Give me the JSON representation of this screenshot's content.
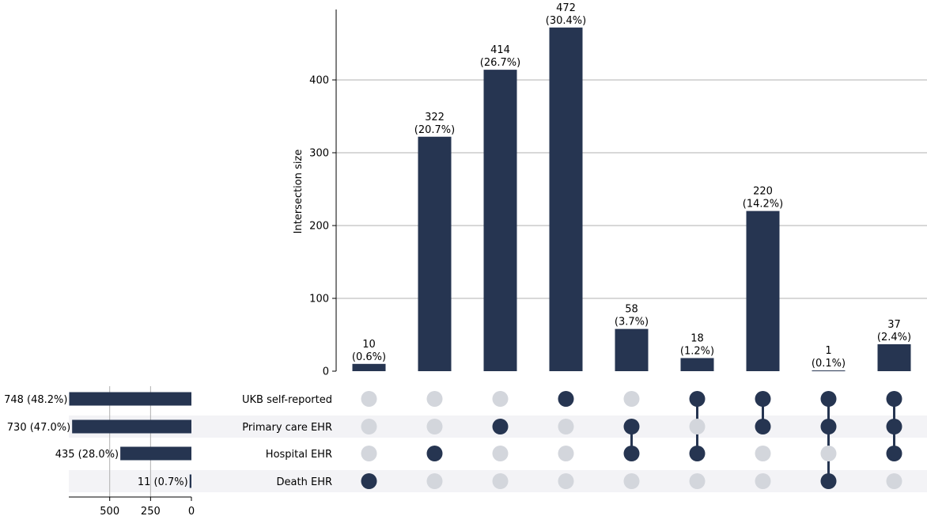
{
  "chart_data": {
    "type": "bar",
    "subtype": "upset",
    "ylabel": "Intersection size",
    "ylim": [
      0,
      495
    ],
    "yticks": [
      0,
      100,
      200,
      300,
      400
    ],
    "grid": true,
    "bar_color": "#263551",
    "inactive_dot_color": "#d3d6dc",
    "stripe_color": "#f3f3f6",
    "sets": [
      {
        "name": "UKB self-reported",
        "size": 748,
        "label": "748 (48.2%)"
      },
      {
        "name": "Primary care EHR",
        "size": 730,
        "label": "730 (47.0%)"
      },
      {
        "name": "Hospital EHR",
        "size": 435,
        "label": "435 (28.0%)"
      },
      {
        "name": "Death EHR",
        "size": 11,
        "label": "11 (0.7%)"
      }
    ],
    "set_size_axis": {
      "ticks": [
        500,
        250,
        0
      ],
      "max": 800
    },
    "intersections": [
      {
        "value": 10,
        "count_label": "10",
        "pct_label": "(0.6%)",
        "members": [
          3
        ]
      },
      {
        "value": 322,
        "count_label": "322",
        "pct_label": "(20.7%)",
        "members": [
          2
        ]
      },
      {
        "value": 414,
        "count_label": "414",
        "pct_label": "(26.7%)",
        "members": [
          1
        ]
      },
      {
        "value": 472,
        "count_label": "472",
        "pct_label": "(30.4%)",
        "members": [
          0
        ]
      },
      {
        "value": 58,
        "count_label": "58",
        "pct_label": "(3.7%)",
        "members": [
          1,
          2
        ]
      },
      {
        "value": 18,
        "count_label": "18",
        "pct_label": "(1.2%)",
        "members": [
          0,
          2
        ]
      },
      {
        "value": 220,
        "count_label": "220",
        "pct_label": "(14.2%)",
        "members": [
          0,
          1
        ]
      },
      {
        "value": 1,
        "count_label": "1",
        "pct_label": "(0.1%)",
        "members": [
          0,
          1,
          3
        ]
      },
      {
        "value": 37,
        "count_label": "37",
        "pct_label": "(2.4%)",
        "members": [
          0,
          1,
          2
        ]
      }
    ]
  }
}
